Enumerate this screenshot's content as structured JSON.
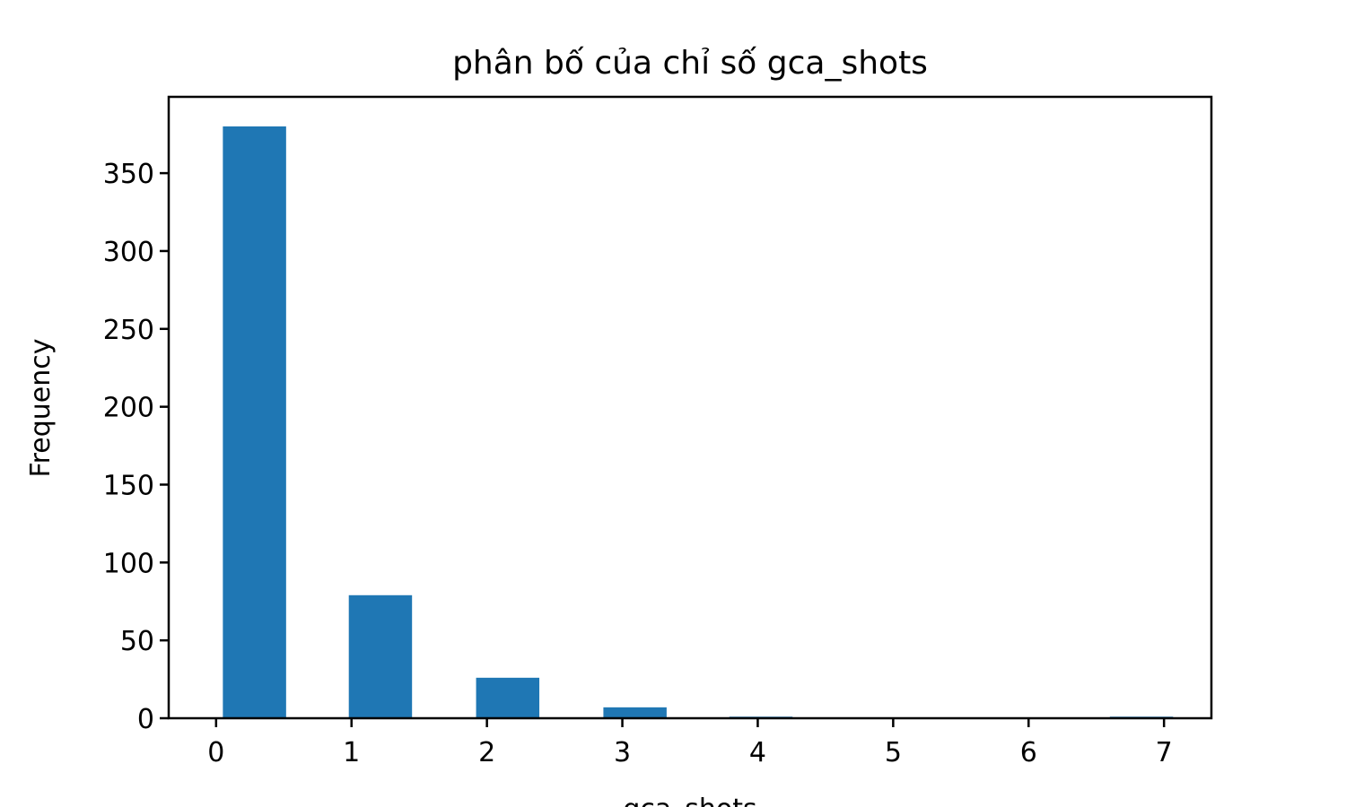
{
  "chart_data": {
    "type": "bar",
    "title": "phân bố của chỉ số gca_shots",
    "xlabel": "gca_shots",
    "ylabel": "Frequency",
    "bars": [
      {
        "x": 0.05,
        "value": 380
      },
      {
        "x": 0.98,
        "value": 79
      },
      {
        "x": 1.92,
        "value": 26
      },
      {
        "x": 2.86,
        "value": 7
      },
      {
        "x": 3.79,
        "value": 1
      },
      {
        "x": 4.73,
        "value": 0
      },
      {
        "x": 5.66,
        "value": 0
      },
      {
        "x": 6.6,
        "value": 1
      }
    ],
    "bar_width": 0.467,
    "xlim": [
      -0.35,
      7.35
    ],
    "ylim": [
      0,
      399
    ],
    "xticks": [
      "0",
      "1",
      "2",
      "3",
      "4",
      "5",
      "6",
      "7"
    ],
    "yticks": [
      "0",
      "50",
      "100",
      "150",
      "200",
      "250",
      "300",
      "350"
    ],
    "grid": false,
    "legend": "none",
    "bar_color": "#1f77b4"
  }
}
